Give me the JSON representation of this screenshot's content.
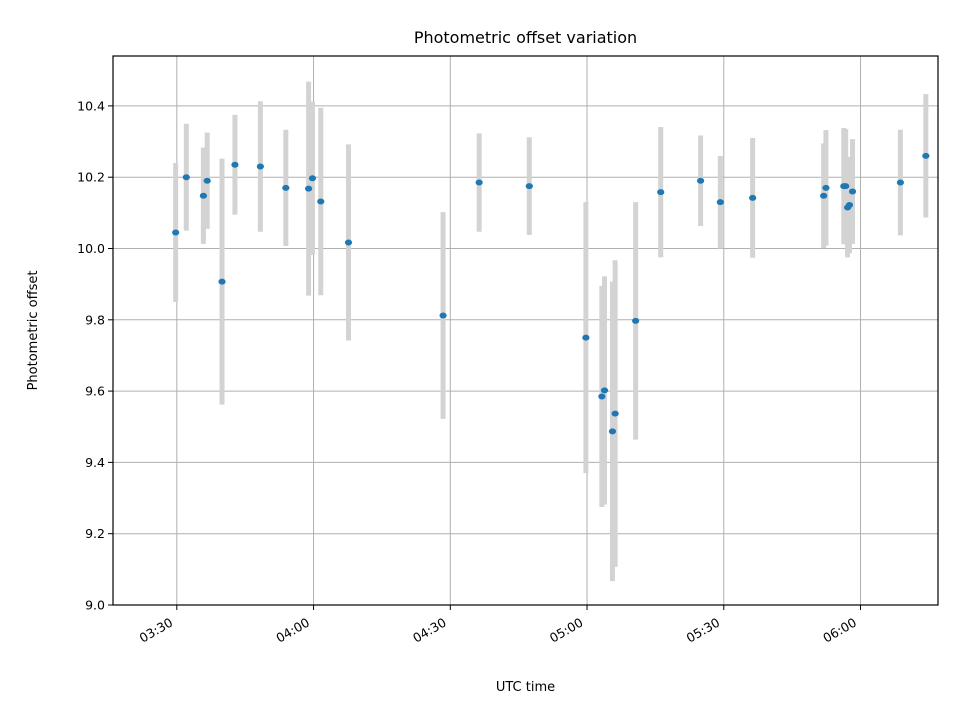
{
  "chart_data": {
    "type": "scatter",
    "title": "Photometric offset variation",
    "xlabel": "UTC time",
    "ylabel": "Photometric offset",
    "x_axis_type": "time",
    "xlim": [
      "03:16",
      "06:17"
    ],
    "ylim": [
      9.0,
      10.54
    ],
    "x_ticks": [
      "03:30",
      "04:00",
      "04:30",
      "05:00",
      "05:30",
      "06:00"
    ],
    "y_ticks": [
      "9.0",
      "9.2",
      "9.4",
      "9.6",
      "9.8",
      "10.0",
      "10.2",
      "10.4"
    ],
    "grid": true,
    "colors": {
      "point": "#1f77b4",
      "errorbar": "#d3d3d3",
      "grid": "#b0b0b0"
    },
    "series": [
      {
        "points": [
          {
            "x": "03:29:45",
            "y": 10.045,
            "err": 0.195
          },
          {
            "x": "03:32:05",
            "y": 10.2,
            "err": 0.15
          },
          {
            "x": "03:35:50",
            "y": 10.148,
            "err": 0.135
          },
          {
            "x": "03:36:40",
            "y": 10.19,
            "err": 0.135
          },
          {
            "x": "03:39:55",
            "y": 9.907,
            "err": 0.345
          },
          {
            "x": "03:42:45",
            "y": 10.235,
            "err": 0.14
          },
          {
            "x": "03:48:20",
            "y": 10.23,
            "err": 0.183
          },
          {
            "x": "03:53:55",
            "y": 10.17,
            "err": 0.163
          },
          {
            "x": "03:58:55",
            "y": 10.168,
            "err": 0.3
          },
          {
            "x": "03:59:45",
            "y": 10.197,
            "err": 0.215
          },
          {
            "x": "04:01:35",
            "y": 10.132,
            "err": 0.263
          },
          {
            "x": "04:07:40",
            "y": 10.017,
            "err": 0.275
          },
          {
            "x": "04:28:25",
            "y": 9.812,
            "err": 0.29
          },
          {
            "x": "04:36:20",
            "y": 10.185,
            "err": 0.138
          },
          {
            "x": "04:47:20",
            "y": 10.175,
            "err": 0.137
          },
          {
            "x": "04:59:45",
            "y": 9.75,
            "err": 0.38
          },
          {
            "x": "05:03:15",
            "y": 9.585,
            "err": 0.31
          },
          {
            "x": "05:03:50",
            "y": 9.602,
            "err": 0.32
          },
          {
            "x": "05:05:35",
            "y": 9.487,
            "err": 0.42
          },
          {
            "x": "05:06:10",
            "y": 9.537,
            "err": 0.43
          },
          {
            "x": "05:10:40",
            "y": 9.797,
            "err": 0.333
          },
          {
            "x": "05:16:10",
            "y": 10.158,
            "err": 0.183
          },
          {
            "x": "05:24:55",
            "y": 10.19,
            "err": 0.127
          },
          {
            "x": "05:29:15",
            "y": 10.13,
            "err": 0.13
          },
          {
            "x": "05:36:20",
            "y": 10.142,
            "err": 0.168
          },
          {
            "x": "05:51:55",
            "y": 10.148,
            "err": 0.147
          },
          {
            "x": "05:52:25",
            "y": 10.17,
            "err": 0.162
          },
          {
            "x": "05:56:20",
            "y": 10.175,
            "err": 0.163
          },
          {
            "x": "05:56:45",
            "y": 10.175,
            "err": 0.16
          },
          {
            "x": "05:57:10",
            "y": 10.115,
            "err": 0.14
          },
          {
            "x": "05:57:35",
            "y": 10.122,
            "err": 0.135
          },
          {
            "x": "05:58:15",
            "y": 10.16,
            "err": 0.147
          },
          {
            "x": "06:08:45",
            "y": 10.185,
            "err": 0.148
          },
          {
            "x": "06:14:20",
            "y": 10.26,
            "err": 0.173
          }
        ]
      }
    ]
  }
}
